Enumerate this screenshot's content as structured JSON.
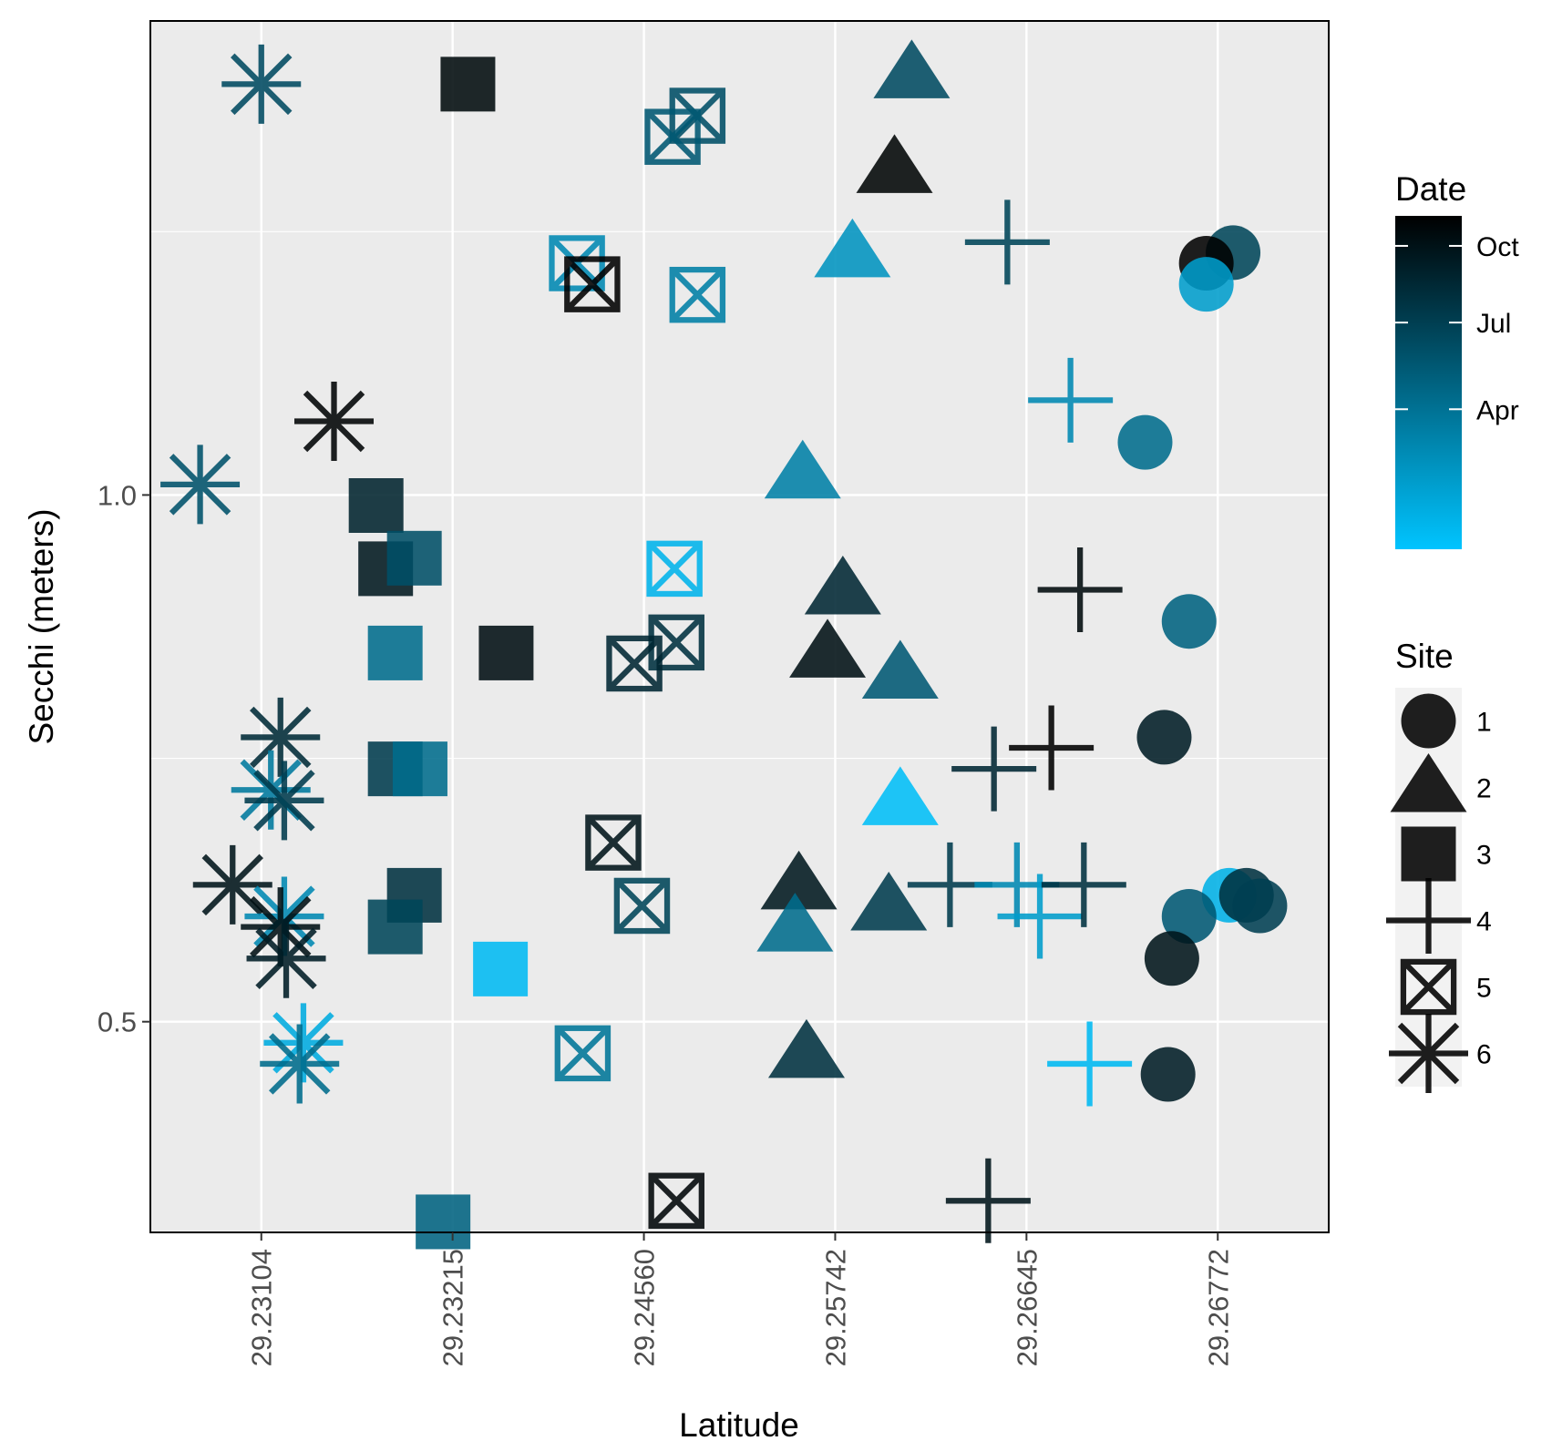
{
  "chart_data": {
    "type": "scatter",
    "title": "",
    "xlabel": "Latitude",
    "ylabel": "Secchi (meters)",
    "x_axis": {
      "type": "discrete",
      "categories": [
        "29.23104",
        "29.23215",
        "29.24560",
        "29.25742",
        "29.26645",
        "29.26772"
      ]
    },
    "y_axis": {
      "ylim": [
        0.3,
        1.45
      ],
      "ticks": [
        {
          "value": 0.5,
          "label": "0.5"
        },
        {
          "value": 1.0,
          "label": "1.0"
        }
      ]
    },
    "grid": true,
    "panel_background": "#ebebeb",
    "legend_position": "right",
    "color_legend": {
      "title": "Date",
      "low_color": "#00c4ff",
      "high_color": "#000000",
      "breaks": [
        {
          "label": "Apr",
          "t": 0.42
        },
        {
          "label": "Jul",
          "t": 0.68
        },
        {
          "label": "Oct",
          "t": 0.91
        }
      ]
    },
    "shape_legend": {
      "title": "Site",
      "items": [
        {
          "label": "1",
          "shape": "circle-icon"
        },
        {
          "label": "2",
          "shape": "triangle-icon"
        },
        {
          "label": "3",
          "shape": "square-icon"
        },
        {
          "label": "4",
          "shape": "plus-icon"
        },
        {
          "label": "5",
          "shape": "boxed-x-icon"
        },
        {
          "label": "6",
          "shape": "asterisk-icon"
        }
      ]
    },
    "series": [
      {
        "site": "6",
        "points": [
          {
            "x": "29.23104",
            "dx": 0.0,
            "y": 1.39,
            "t": 0.62
          },
          {
            "x": "29.23104",
            "dx": -0.32,
            "y": 1.01,
            "t": 0.58
          },
          {
            "x": "29.23104",
            "dx": 0.38,
            "y": 1.07,
            "t": 0.98
          },
          {
            "x": "29.23104",
            "dx": 0.1,
            "y": 0.77,
            "t": 0.78
          },
          {
            "x": "29.23104",
            "dx": 0.05,
            "y": 0.72,
            "t": 0.38
          },
          {
            "x": "29.23104",
            "dx": 0.12,
            "y": 0.71,
            "t": 0.7
          },
          {
            "x": "29.23104",
            "dx": -0.15,
            "y": 0.63,
            "t": 0.9
          },
          {
            "x": "29.23104",
            "dx": 0.12,
            "y": 0.6,
            "t": 0.3
          },
          {
            "x": "29.23104",
            "dx": 0.1,
            "y": 0.59,
            "t": 0.92
          },
          {
            "x": "29.23104",
            "dx": 0.13,
            "y": 0.56,
            "t": 0.85
          },
          {
            "x": "29.23104",
            "dx": 0.22,
            "y": 0.48,
            "t": 0.12
          },
          {
            "x": "29.23104",
            "dx": 0.2,
            "y": 0.46,
            "t": 0.45
          }
        ]
      },
      {
        "site": "3",
        "points": [
          {
            "x": "29.23215",
            "dx": 0.08,
            "y": 1.39,
            "t": 0.95
          },
          {
            "x": "29.23215",
            "dx": -0.4,
            "y": 0.99,
            "t": 0.82
          },
          {
            "x": "29.23215",
            "dx": -0.35,
            "y": 0.93,
            "t": 0.88
          },
          {
            "x": "29.23215",
            "dx": -0.2,
            "y": 0.94,
            "t": 0.6
          },
          {
            "x": "29.23215",
            "dx": -0.3,
            "y": 0.85,
            "t": 0.45
          },
          {
            "x": "29.23215",
            "dx": 0.28,
            "y": 0.85,
            "t": 0.93
          },
          {
            "x": "29.23215",
            "dx": -0.3,
            "y": 0.74,
            "t": 0.7
          },
          {
            "x": "29.23215",
            "dx": -0.17,
            "y": 0.74,
            "t": 0.45
          },
          {
            "x": "29.23215",
            "dx": -0.2,
            "y": 0.62,
            "t": 0.75
          },
          {
            "x": "29.23215",
            "dx": -0.3,
            "y": 0.59,
            "t": 0.65
          },
          {
            "x": "29.23215",
            "dx": 0.25,
            "y": 0.55,
            "t": 0.05
          },
          {
            "x": "29.23215",
            "dx": -0.05,
            "y": 0.31,
            "t": 0.5
          }
        ]
      },
      {
        "site": "5",
        "points": [
          {
            "x": "29.24560",
            "dx": 0.28,
            "y": 1.36,
            "t": 0.6
          },
          {
            "x": "29.24560",
            "dx": 0.15,
            "y": 1.34,
            "t": 0.55
          },
          {
            "x": "29.24560",
            "dx": -0.35,
            "y": 1.22,
            "t": 0.3
          },
          {
            "x": "29.24560",
            "dx": -0.27,
            "y": 1.2,
            "t": 1.0
          },
          {
            "x": "29.24560",
            "dx": 0.28,
            "y": 1.19,
            "t": 0.35
          },
          {
            "x": "29.24560",
            "dx": 0.16,
            "y": 0.93,
            "t": 0.08
          },
          {
            "x": "29.24560",
            "dx": 0.17,
            "y": 0.86,
            "t": 0.75
          },
          {
            "x": "29.24560",
            "dx": -0.05,
            "y": 0.84,
            "t": 0.8
          },
          {
            "x": "29.24560",
            "dx": -0.16,
            "y": 0.67,
            "t": 0.9
          },
          {
            "x": "29.24560",
            "dx": -0.01,
            "y": 0.61,
            "t": 0.65
          },
          {
            "x": "29.24560",
            "dx": -0.32,
            "y": 0.47,
            "t": 0.4
          },
          {
            "x": "29.24560",
            "dx": 0.17,
            "y": 0.33,
            "t": 0.97
          }
        ]
      },
      {
        "site": "2",
        "points": [
          {
            "x": "29.25742",
            "dx": 0.4,
            "y": 1.4,
            "t": 0.62
          },
          {
            "x": "29.25742",
            "dx": 0.31,
            "y": 1.31,
            "t": 0.98
          },
          {
            "x": "29.25742",
            "dx": 0.09,
            "y": 1.23,
            "t": 0.25
          },
          {
            "x": "29.25742",
            "dx": -0.17,
            "y": 1.02,
            "t": 0.35
          },
          {
            "x": "29.25742",
            "dx": 0.04,
            "y": 0.91,
            "t": 0.8
          },
          {
            "x": "29.25742",
            "dx": -0.04,
            "y": 0.85,
            "t": 0.92
          },
          {
            "x": "29.25742",
            "dx": 0.34,
            "y": 0.83,
            "t": 0.55
          },
          {
            "x": "29.25742",
            "dx": 0.34,
            "y": 0.71,
            "t": 0.03
          },
          {
            "x": "29.25742",
            "dx": -0.19,
            "y": 0.63,
            "t": 0.88
          },
          {
            "x": "29.25742",
            "dx": -0.21,
            "y": 0.59,
            "t": 0.45
          },
          {
            "x": "29.25742",
            "dx": 0.28,
            "y": 0.61,
            "t": 0.7
          },
          {
            "x": "29.25742",
            "dx": -0.15,
            "y": 0.47,
            "t": 0.75
          }
        ]
      },
      {
        "site": "4",
        "points": [
          {
            "x": "29.26645",
            "dx": -0.1,
            "y": 1.24,
            "t": 0.65
          },
          {
            "x": "29.26645",
            "dx": 0.23,
            "y": 1.09,
            "t": 0.3
          },
          {
            "x": "29.26645",
            "dx": 0.28,
            "y": 0.91,
            "t": 0.95
          },
          {
            "x": "29.26645",
            "dx": 0.13,
            "y": 0.76,
            "t": 1.0
          },
          {
            "x": "29.26645",
            "dx": -0.17,
            "y": 0.74,
            "t": 0.8
          },
          {
            "x": "29.26645",
            "dx": -0.4,
            "y": 0.63,
            "t": 0.7
          },
          {
            "x": "29.26645",
            "dx": -0.05,
            "y": 0.63,
            "t": 0.3
          },
          {
            "x": "29.26645",
            "dx": 0.07,
            "y": 0.6,
            "t": 0.2
          },
          {
            "x": "29.26645",
            "dx": 0.3,
            "y": 0.63,
            "t": 0.75
          },
          {
            "x": "29.26645",
            "dx": 0.33,
            "y": 0.46,
            "t": 0.05
          },
          {
            "x": "29.26645",
            "dx": -0.2,
            "y": 0.33,
            "t": 0.9
          }
        ]
      },
      {
        "site": "1",
        "points": [
          {
            "x": "29.26772",
            "dx": 0.08,
            "y": 1.23,
            "t": 0.65
          },
          {
            "x": "29.26772",
            "dx": -0.06,
            "y": 1.22,
            "t": 1.0
          },
          {
            "x": "29.26772",
            "dx": -0.06,
            "y": 1.2,
            "t": 0.2
          },
          {
            "x": "29.26772",
            "dx": -0.38,
            "y": 1.05,
            "t": 0.45
          },
          {
            "x": "29.26772",
            "dx": -0.15,
            "y": 0.88,
            "t": 0.5
          },
          {
            "x": "29.26772",
            "dx": -0.28,
            "y": 0.77,
            "t": 0.85
          },
          {
            "x": "29.26772",
            "dx": 0.06,
            "y": 0.62,
            "t": 0.1
          },
          {
            "x": "29.26772",
            "dx": 0.15,
            "y": 0.62,
            "t": 0.75
          },
          {
            "x": "29.26772",
            "dx": 0.22,
            "y": 0.61,
            "t": 0.68
          },
          {
            "x": "29.26772",
            "dx": -0.15,
            "y": 0.6,
            "t": 0.55
          },
          {
            "x": "29.26772",
            "dx": -0.24,
            "y": 0.56,
            "t": 0.9
          },
          {
            "x": "29.26772",
            "dx": -0.26,
            "y": 0.45,
            "t": 0.85
          }
        ]
      }
    ]
  }
}
